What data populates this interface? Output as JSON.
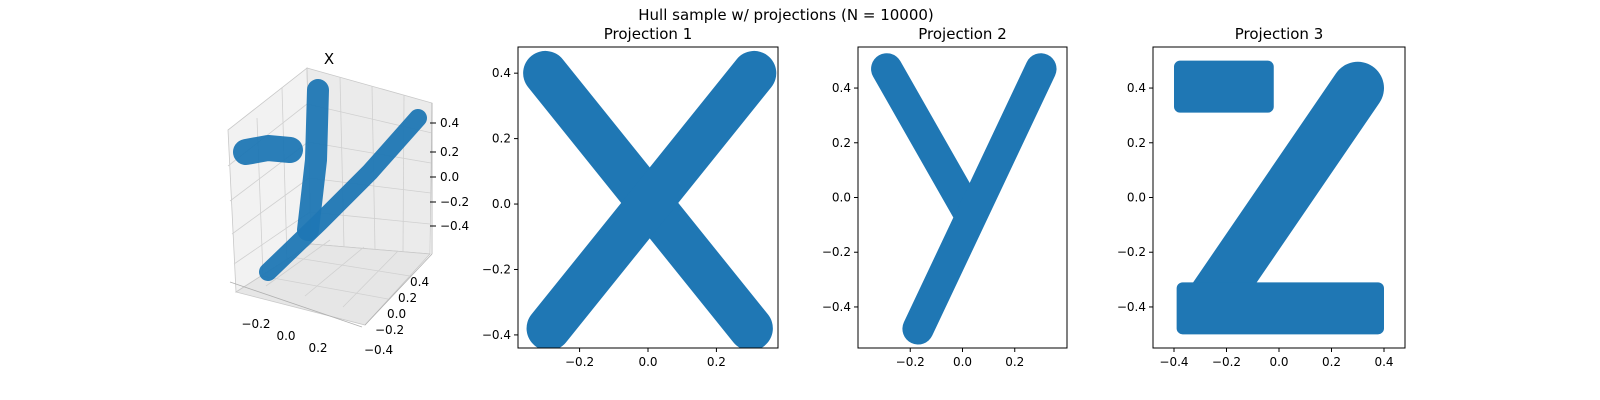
{
  "figure": {
    "suptitle": "Hull sample w/ projections (N = 10000)",
    "point_color": "#1f77b4"
  },
  "chart_data": [
    {
      "type": "scatter",
      "projection": "3d",
      "title": "X",
      "shape": "letter-y",
      "xticks": [
        "−0.2",
        "0.0",
        "0.2"
      ],
      "yticks": [
        "0.4",
        "0.2",
        "0.0",
        "−0.2",
        "−0.4"
      ],
      "zticks": [
        "0.4",
        "0.2",
        "0.0",
        "−0.2",
        "−0.4"
      ]
    },
    {
      "type": "scatter",
      "title": "Projection 1",
      "shape": "letter-X",
      "xlim": [
        -0.38,
        0.38
      ],
      "ylim": [
        -0.44,
        0.48
      ],
      "xticks": [
        -0.2,
        0.0,
        0.2
      ],
      "yticks": [
        -0.4,
        -0.2,
        0.0,
        0.2,
        0.4
      ],
      "xtick_labels": [
        "−0.2",
        "0.0",
        "0.2"
      ],
      "ytick_labels": [
        "−0.4",
        "−0.2",
        "0.0",
        "0.2",
        "0.4"
      ],
      "strokes": [
        [
          [
            -0.3,
            0.4
          ],
          [
            0.3,
            -0.38
          ]
        ],
        [
          [
            0.31,
            0.4
          ],
          [
            -0.29,
            -0.38
          ]
        ]
      ],
      "stroke_width": 0.13
    },
    {
      "type": "scatter",
      "title": "Projection 2",
      "shape": "letter-Y",
      "xlim": [
        -0.4,
        0.4
      ],
      "ylim": [
        -0.55,
        0.55
      ],
      "xticks": [
        -0.2,
        0.0,
        0.2
      ],
      "yticks": [
        -0.4,
        -0.2,
        0.0,
        0.2,
        0.4
      ],
      "xtick_labels": [
        "−0.2",
        "0.0",
        "0.2"
      ],
      "ytick_labels": [
        "−0.4",
        "−0.2",
        "0.0",
        "0.2",
        "0.4"
      ],
      "strokes": [
        [
          [
            -0.29,
            0.47
          ],
          [
            0.02,
            -0.05
          ]
        ],
        [
          [
            0.3,
            0.47
          ],
          [
            -0.17,
            -0.48
          ]
        ]
      ],
      "stroke_width": 0.12
    },
    {
      "type": "scatter",
      "title": "Projection 3",
      "shape": "letter-Z",
      "xlim": [
        -0.48,
        0.48
      ],
      "ylim": [
        -0.55,
        0.55
      ],
      "xticks": [
        -0.4,
        -0.2,
        0.0,
        0.2,
        0.4
      ],
      "yticks": [
        -0.4,
        -0.2,
        0.0,
        0.2,
        0.4
      ],
      "xtick_labels": [
        "−0.4",
        "−0.2",
        "0.0",
        "0.2",
        "0.4"
      ],
      "ytick_labels": [
        "−0.4",
        "−0.2",
        "0.0",
        "0.2",
        "0.4"
      ],
      "strokes": [
        [
          [
            0.3,
            0.4
          ],
          [
            -0.27,
            -0.4
          ]
        ]
      ],
      "stroke_width": 0.2,
      "rects": [
        [
          -0.4,
          0.31,
          -0.02,
          0.5
        ],
        [
          -0.39,
          -0.5,
          0.4,
          -0.31
        ]
      ]
    }
  ]
}
